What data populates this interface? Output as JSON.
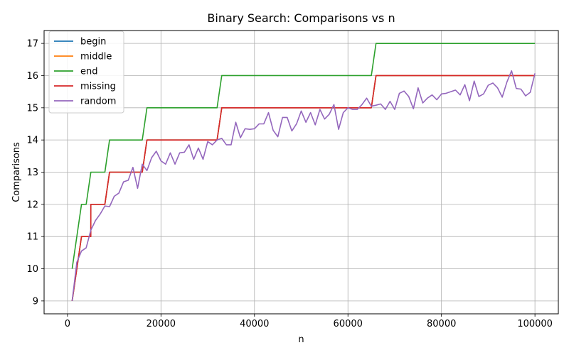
{
  "chart_data": {
    "type": "line",
    "title": "Binary Search: Comparisons vs n",
    "xlabel": "n",
    "ylabel": "Comparisons",
    "xlim": [
      -5000,
      105000
    ],
    "ylim": [
      8.6,
      17.4
    ],
    "xticks": [
      0,
      20000,
      40000,
      60000,
      80000,
      100000
    ],
    "xtick_labels": [
      "0",
      "20000",
      "40000",
      "60000",
      "80000",
      "100000"
    ],
    "yticks": [
      9,
      10,
      11,
      12,
      13,
      14,
      15,
      16,
      17
    ],
    "ytick_labels": [
      "9",
      "10",
      "11",
      "12",
      "13",
      "14",
      "15",
      "16",
      "17"
    ],
    "grid": true,
    "legend": "top-left",
    "series": [
      {
        "name": "begin",
        "color": "#1f77b4",
        "x": [
          1000,
          2000,
          3000,
          4000,
          4999,
          5000,
          8000,
          9000,
          16000,
          17000,
          32000,
          33000,
          65000,
          66000,
          100000
        ],
        "y": [
          9,
          10,
          11,
          11,
          11,
          12,
          12,
          13,
          13,
          14,
          14,
          15,
          15,
          16,
          16
        ]
      },
      {
        "name": "middle",
        "color": "#ff7f0e",
        "x": [
          1000,
          2000,
          3000,
          4000,
          4999,
          5000,
          8000,
          9000,
          16000,
          17000,
          32000,
          33000,
          65000,
          66000,
          100000
        ],
        "y": [
          9,
          10,
          11,
          11,
          11,
          12,
          12,
          13,
          13,
          14,
          14,
          15,
          15,
          16,
          16
        ]
      },
      {
        "name": "end",
        "color": "#2ca02c",
        "x": [
          1000,
          2000,
          3000,
          4000,
          5000,
          8000,
          9000,
          16000,
          17000,
          32000,
          33000,
          65000,
          66000,
          100000
        ],
        "y": [
          10,
          11,
          12,
          12,
          13,
          13,
          14,
          14,
          15,
          15,
          16,
          16,
          17,
          17
        ]
      },
      {
        "name": "missing",
        "color": "#d62728",
        "x": [
          1000,
          2000,
          3000,
          4000,
          4999,
          5000,
          8000,
          9000,
          16000,
          17000,
          32000,
          33000,
          65000,
          66000,
          100000
        ],
        "y": [
          9,
          10,
          11,
          11,
          11,
          12,
          12,
          13,
          13,
          14,
          14,
          15,
          15,
          16,
          16
        ]
      },
      {
        "name": "random",
        "color": "#9467bd",
        "x": [
          1000,
          2000,
          3000,
          4000,
          5000,
          6000,
          7000,
          8000,
          9000,
          10000,
          11000,
          12000,
          13000,
          14000,
          15000,
          16000,
          17000,
          18000,
          19000,
          20000,
          21000,
          22000,
          23000,
          24000,
          25000,
          26000,
          27000,
          28000,
          29000,
          30000,
          31000,
          32000,
          33000,
          34000,
          35000,
          36000,
          37000,
          38000,
          39000,
          40000,
          41000,
          42000,
          43000,
          44000,
          45000,
          46000,
          47000,
          48000,
          49000,
          50000,
          51000,
          52000,
          53000,
          54000,
          55000,
          56000,
          57000,
          58000,
          59000,
          60000,
          61000,
          62000,
          63000,
          64000,
          65000,
          66000,
          67000,
          68000,
          69000,
          70000,
          71000,
          72000,
          73000,
          74000,
          75000,
          76000,
          77000,
          78000,
          79000,
          80000,
          81000,
          82000,
          83000,
          84000,
          85000,
          86000,
          87000,
          88000,
          89000,
          90000,
          91000,
          92000,
          93000,
          94000,
          95000,
          96000,
          97000,
          98000,
          99000,
          100000
        ],
        "y": [
          9.0,
          10.2,
          10.55,
          10.65,
          11.2,
          11.5,
          11.7,
          11.95,
          11.93,
          12.25,
          12.35,
          12.7,
          12.75,
          13.15,
          12.5,
          13.25,
          13.05,
          13.45,
          13.65,
          13.35,
          13.25,
          13.6,
          13.25,
          13.6,
          13.62,
          13.85,
          13.4,
          13.75,
          13.4,
          13.95,
          13.85,
          14.0,
          14.05,
          13.85,
          13.85,
          14.55,
          14.07,
          14.35,
          14.33,
          14.35,
          14.5,
          14.5,
          14.85,
          14.3,
          14.1,
          14.7,
          14.7,
          14.28,
          14.5,
          14.9,
          14.55,
          14.85,
          14.47,
          14.95,
          14.65,
          14.8,
          15.1,
          14.33,
          14.85,
          15.0,
          14.95,
          14.95,
          15.1,
          15.3,
          15.05,
          15.08,
          15.12,
          14.95,
          15.2,
          14.95,
          15.45,
          15.52,
          15.35,
          14.97,
          15.62,
          15.15,
          15.3,
          15.4,
          15.25,
          15.43,
          15.45,
          15.5,
          15.55,
          15.4,
          15.72,
          15.22,
          15.83,
          15.35,
          15.43,
          15.7,
          15.77,
          15.62,
          15.33,
          15.8,
          16.15,
          15.6,
          15.58,
          15.37,
          15.48,
          16.07
        ]
      }
    ]
  }
}
